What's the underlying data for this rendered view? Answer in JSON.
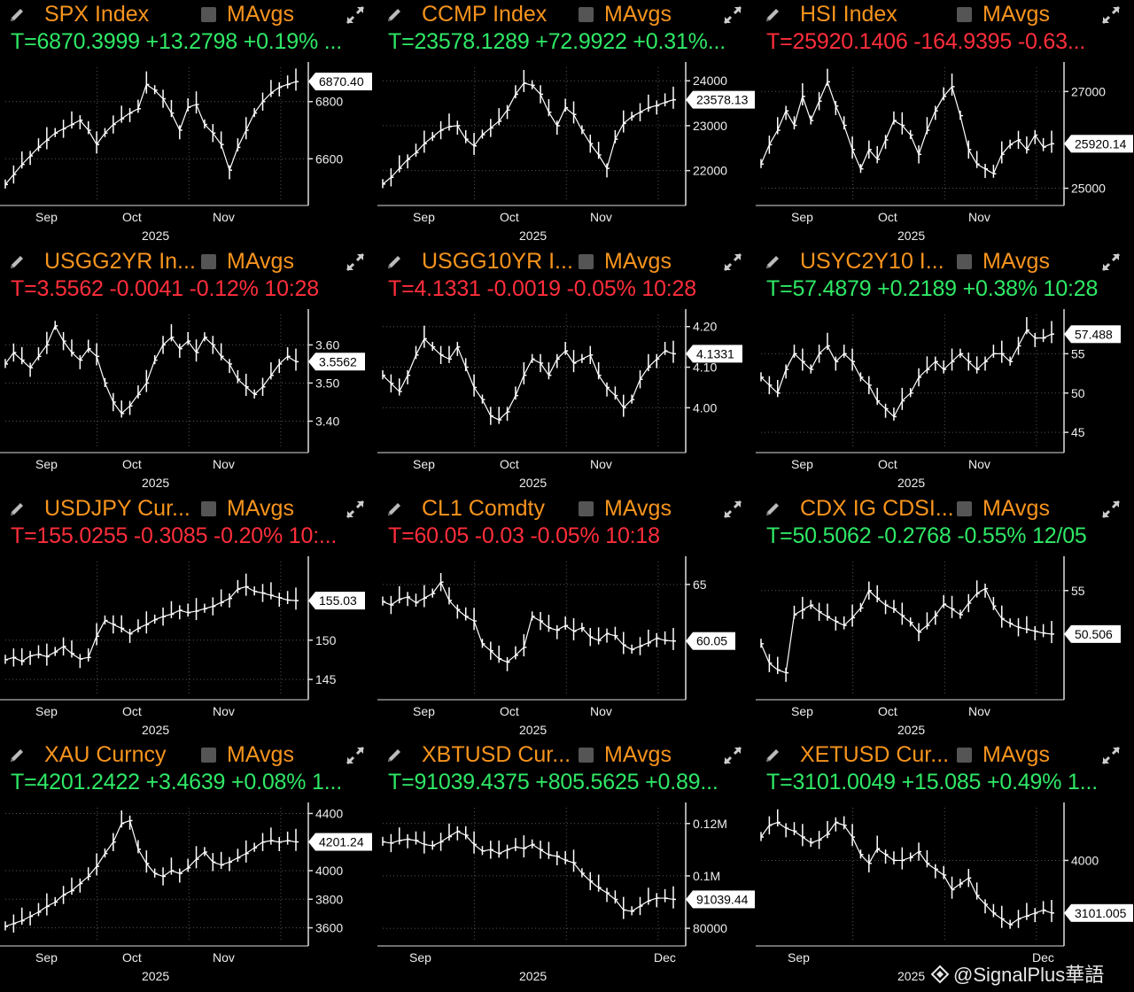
{
  "colors": {
    "title": "#f7941d",
    "up": "#2fe866",
    "down": "#ff2e3b",
    "bg": "#000000",
    "line": "#ffffff"
  },
  "icons": {
    "edit": "pencil-icon",
    "toggle": "checkbox-icon",
    "maximize": "expand-icon"
  },
  "watermark": "@SignalPlus華語",
  "panels": [
    {
      "title": "SPX Index",
      "ma_label": "MAvgs",
      "quote": "T=6870.3999 +13.2798 +0.19% ...",
      "direction": "up",
      "price_label": "6870.40",
      "y_ticks": [
        "6800",
        "6600"
      ],
      "x_ticks": [
        "Sep",
        "Oct",
        "Nov"
      ],
      "year": "2025",
      "chart_data": {
        "type": "line",
        "ylim": [
          6480,
          6920
        ],
        "last": 6870.4,
        "tick_values": [
          6800,
          6600
        ],
        "values": [
          6510,
          6545,
          6580,
          6610,
          6640,
          6665,
          6690,
          6705,
          6720,
          6735,
          6700,
          6650,
          6690,
          6720,
          6740,
          6760,
          6775,
          6860,
          6840,
          6810,
          6760,
          6700,
          6780,
          6790,
          6720,
          6690,
          6650,
          6560,
          6640,
          6700,
          6760,
          6800,
          6830,
          6850,
          6860,
          6870
        ]
      }
    },
    {
      "title": "CCMP Index",
      "ma_label": "MAvgs",
      "quote": "T=23578.1289 +72.9922 +0.31%...",
      "direction": "up",
      "price_label": "23578.13",
      "y_ticks": [
        "24000",
        "23000",
        "22000"
      ],
      "x_ticks": [
        "Sep",
        "Oct",
        "Nov"
      ],
      "year": "2025",
      "chart_data": {
        "type": "line",
        "ylim": [
          21500,
          24300
        ],
        "last": 23578.13,
        "tick_values": [
          24000,
          23000,
          22000
        ],
        "values": [
          21700,
          21850,
          22050,
          22250,
          22400,
          22600,
          22750,
          22900,
          22980,
          23000,
          22700,
          22550,
          22800,
          22950,
          23100,
          23350,
          23700,
          23950,
          23900,
          23700,
          23300,
          23000,
          23400,
          23250,
          22900,
          22600,
          22350,
          22050,
          22700,
          23050,
          23200,
          23300,
          23400,
          23450,
          23520,
          23578
        ]
      }
    },
    {
      "title": "HSI Index",
      "ma_label": "MAvgs",
      "quote": "T=25920.1406 -164.9395 -0.63...",
      "direction": "down",
      "price_label": "25920.14",
      "y_ticks": [
        "27000",
        "25000"
      ],
      "x_ticks": [
        "Sep",
        "Oct",
        "Nov"
      ],
      "year": "2025",
      "chart_data": {
        "type": "line",
        "ylim": [
          24900,
          27500
        ],
        "last": 25920.14,
        "tick_values": [
          27000,
          25000
        ],
        "values": [
          25500,
          25900,
          26200,
          26600,
          26300,
          26900,
          26400,
          26800,
          27200,
          26700,
          26300,
          25800,
          25400,
          25800,
          25600,
          26000,
          26400,
          26300,
          26100,
          25700,
          26200,
          26600,
          26900,
          27100,
          26500,
          25800,
          25500,
          25400,
          25300,
          25700,
          25900,
          26000,
          25800,
          26100,
          25850,
          25920
        ]
      }
    },
    {
      "title": "USGG2YR In...",
      "ma_label": "MAvgs",
      "quote": "T=3.5562 -0.0041 -0.12% 10:28",
      "direction": "down",
      "price_label": "3.5562",
      "y_ticks": [
        "3.60",
        "3.50",
        "3.40"
      ],
      "x_ticks": [
        "Sep",
        "Oct",
        "Nov"
      ],
      "year": "2025",
      "chart_data": {
        "type": "line",
        "ylim": [
          3.35,
          3.68
        ],
        "last": 3.5562,
        "tick_values": [
          3.6,
          3.5,
          3.4
        ],
        "values": [
          3.55,
          3.58,
          3.56,
          3.54,
          3.57,
          3.6,
          3.65,
          3.61,
          3.58,
          3.56,
          3.59,
          3.57,
          3.5,
          3.45,
          3.42,
          3.44,
          3.47,
          3.5,
          3.56,
          3.6,
          3.62,
          3.59,
          3.61,
          3.58,
          3.62,
          3.6,
          3.57,
          3.55,
          3.51,
          3.49,
          3.47,
          3.49,
          3.52,
          3.55,
          3.57,
          3.556
        ]
      }
    },
    {
      "title": "USGG10YR I...",
      "ma_label": "MAvgs",
      "quote": "T=4.1331 -0.0019 -0.05% 10:28",
      "direction": "down",
      "price_label": "4.1331",
      "y_ticks": [
        "4.20",
        "4.10",
        "4.00"
      ],
      "x_ticks": [
        "Sep",
        "Oct",
        "Nov"
      ],
      "year": "2025",
      "chart_data": {
        "type": "line",
        "ylim": [
          3.92,
          4.23
        ],
        "last": 4.1331,
        "tick_values": [
          4.2,
          4.1,
          4.0
        ],
        "values": [
          4.08,
          4.06,
          4.04,
          4.08,
          4.13,
          4.17,
          4.15,
          4.13,
          4.12,
          4.15,
          4.1,
          4.05,
          4.02,
          3.98,
          3.97,
          3.99,
          4.03,
          4.08,
          4.12,
          4.11,
          4.08,
          4.12,
          4.14,
          4.11,
          4.12,
          4.13,
          4.08,
          4.05,
          4.03,
          4.0,
          4.02,
          4.07,
          4.1,
          4.12,
          4.14,
          4.133
        ]
      }
    },
    {
      "title": "USYC2Y10 I...",
      "ma_label": "MAvgs",
      "quote": "T=57.4879 +0.2189 +0.38% 10:28",
      "direction": "up",
      "price_label": "57.488",
      "y_ticks": [
        "55",
        "50",
        "45"
      ],
      "x_ticks": [
        "Sep",
        "Oct",
        "Nov"
      ],
      "year": "2025",
      "chart_data": {
        "type": "line",
        "ylim": [
          44,
          60
        ],
        "last": 57.488,
        "tick_values": [
          55,
          50,
          45
        ],
        "values": [
          52,
          51,
          50,
          53,
          55,
          54,
          53,
          55,
          56,
          54,
          55,
          54,
          52,
          51,
          49,
          48,
          47,
          49,
          50,
          52,
          53,
          54,
          53,
          54,
          55,
          54,
          53,
          54,
          55,
          55,
          54,
          56,
          58,
          57,
          57,
          57.5
        ]
      }
    },
    {
      "title": "USDJPY Cur...",
      "ma_label": "MAvgs",
      "quote": "T=155.0255 -0.3085 -0.20% 10:...",
      "direction": "down",
      "price_label": "155.03",
      "y_ticks": [
        "150",
        "145"
      ],
      "x_ticks": [
        "Sep",
        "Oct",
        "Nov"
      ],
      "year": "2025",
      "chart_data": {
        "type": "line",
        "ylim": [
          144,
          160
        ],
        "last": 155.03,
        "tick_values": [
          150,
          145
        ],
        "values": [
          147.5,
          147.8,
          147.3,
          148,
          148.2,
          147.9,
          148.5,
          149.2,
          148.3,
          147.6,
          147.8,
          150.5,
          152.5,
          152,
          151.5,
          150.8,
          151.5,
          152,
          152.6,
          153,
          153.3,
          153.8,
          153.5,
          153.7,
          154,
          154.3,
          154.8,
          155.3,
          156.5,
          156.8,
          156.2,
          156,
          155.7,
          155.4,
          155.1,
          155.03
        ]
      }
    },
    {
      "title": "CL1 Comdty",
      "ma_label": "MAvgs",
      "quote": "T=60.05 -0.03 -0.05% 10:18",
      "direction": "down",
      "price_label": "60.05",
      "y_ticks": [
        "65"
      ],
      "x_ticks": [
        "Sep",
        "Oct",
        "Nov"
      ],
      "year": "2025",
      "chart_data": {
        "type": "line",
        "ylim": [
          56,
          67
        ],
        "last": 60.05,
        "tick_values": [
          65
        ],
        "values": [
          63.5,
          63.2,
          63.7,
          63.9,
          63.4,
          63.8,
          64.2,
          65.2,
          63.6,
          62.8,
          62.2,
          61.8,
          59.8,
          59.2,
          58.5,
          58.2,
          58.8,
          59.5,
          62.2,
          61.8,
          61.2,
          61,
          61.4,
          60.9,
          61.2,
          60.4,
          60.1,
          60.7,
          60.5,
          59.7,
          59.3,
          59.6,
          59.9,
          60.3,
          60.1,
          60.05
        ]
      }
    },
    {
      "title": "CDX IG CDSI...",
      "ma_label": "MAvgs",
      "quote": "T=50.5062 -0.2768 -0.55% 12/05",
      "direction": "up",
      "price_label": "50.506",
      "y_ticks": [
        "55"
      ],
      "x_ticks": [
        "Sep",
        "Oct",
        "Nov"
      ],
      "year": "2025",
      "chart_data": {
        "type": "line",
        "ylim": [
          45,
          58
        ],
        "last": 50.506,
        "tick_values": [
          55
        ],
        "values": [
          49.5,
          47.5,
          46.8,
          46.5,
          52.5,
          53,
          53.5,
          52.8,
          52.3,
          51.8,
          51.4,
          52.2,
          53.2,
          55,
          54.2,
          53.5,
          53.1,
          52.4,
          51.7,
          50.7,
          51.4,
          52.4,
          53.6,
          53.1,
          52.5,
          53.7,
          54.7,
          55.2,
          53.4,
          52.1,
          51.6,
          51.2,
          51,
          50.8,
          50.6,
          50.506
        ]
      }
    },
    {
      "title": "XAU Curncy",
      "ma_label": "MAvgs",
      "quote": "T=4201.2422 +3.4639 +0.08% 1...",
      "direction": "up",
      "price_label": "4201.24",
      "y_ticks": [
        "4400",
        "4000",
        "3800",
        "3600"
      ],
      "x_ticks": [
        "Sep",
        "Oct",
        "Nov"
      ],
      "year": "2025",
      "chart_data": {
        "type": "line",
        "ylim": [
          3560,
          4440
        ],
        "last": 4201.24,
        "tick_values": [
          4400,
          4000,
          3800,
          3600
        ],
        "values": [
          3610,
          3630,
          3650,
          3680,
          3710,
          3750,
          3780,
          3830,
          3860,
          3910,
          3960,
          4030,
          4120,
          4200,
          4330,
          4350,
          4150,
          4050,
          3980,
          3960,
          4000,
          3980,
          4020,
          4080,
          4130,
          4060,
          4040,
          4060,
          4090,
          4120,
          4160,
          4200,
          4210,
          4200,
          4210,
          4201
        ]
      }
    },
    {
      "title": "XBTUSD Cur...",
      "ma_label": "MAvgs",
      "quote": "T=91039.4375 +805.5625 +0.89...",
      "direction": "up",
      "price_label": "91039.44",
      "y_ticks": [
        "0.12M",
        "0.1M",
        "80000"
      ],
      "x_ticks": [
        "Sep",
        "Dec"
      ],
      "year": "2025",
      "chart_data": {
        "type": "line",
        "ylim": [
          78000,
          126000
        ],
        "last": 91039.44,
        "tick_values": [
          120000,
          100000,
          80000
        ],
        "values": [
          113000,
          112500,
          113500,
          114000,
          113500,
          112000,
          111500,
          113000,
          115000,
          117000,
          115500,
          112000,
          109500,
          110000,
          108500,
          110000,
          111000,
          110500,
          112000,
          110000,
          108000,
          107500,
          106000,
          105000,
          101000,
          98000,
          95500,
          93500,
          91000,
          87000,
          86500,
          88500,
          90500,
          91500,
          91500,
          91039
        ]
      }
    },
    {
      "title": "XETUSD Cur...",
      "ma_label": "MAvgs",
      "quote": "T=3101.0049 +15.085 +0.49% 1...",
      "direction": "up",
      "price_label": "3101.005",
      "y_ticks": [
        "4000"
      ],
      "x_ticks": [
        "Sep",
        "Dec"
      ],
      "year": "2025",
      "chart_data": {
        "type": "line",
        "ylim": [
          2750,
          4900
        ],
        "last": 3101.005,
        "tick_values": [
          4000
        ],
        "values": [
          4400,
          4600,
          4650,
          4550,
          4500,
          4400,
          4300,
          4350,
          4450,
          4650,
          4600,
          4400,
          4100,
          3950,
          4200,
          4100,
          4000,
          4000,
          4050,
          4150,
          3950,
          3850,
          3750,
          3500,
          3600,
          3700,
          3400,
          3250,
          3100,
          3000,
          2900,
          3000,
          3050,
          3100,
          3150,
          3101
        ]
      }
    }
  ]
}
